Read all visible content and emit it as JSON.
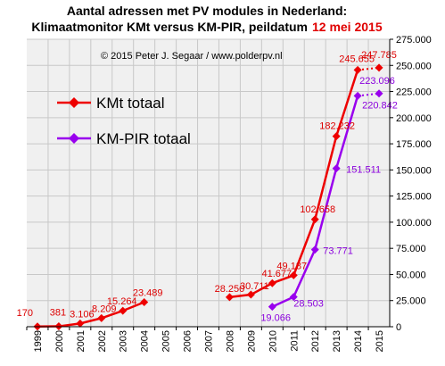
{
  "header": {
    "title_line1": "Aantal adressen met PV modules in Nederland:",
    "title_line2": "Klimaatmonitor  KMt versus KM-PIR,  peildatum",
    "title_date": "12 mei 2015",
    "credit": "© 2015 Peter J. Segaar / www.polderpv.nl"
  },
  "colors": {
    "kmt": "#ee0000",
    "kmpir": "#9900ee",
    "plot_bg": "#f0f0f0",
    "grid": "#c8c8c8"
  },
  "chart_data": {
    "type": "line",
    "title": "Aantal adressen met PV modules in Nederland: Klimaatmonitor  KMt versus KM-PIR,  peildatum 12 mei 2015",
    "x": [
      "1999",
      "2000",
      "2001",
      "2002",
      "2003",
      "2004",
      "2005",
      "2006",
      "2007",
      "2008",
      "2009",
      "2010",
      "2011",
      "2012",
      "2013",
      "2014",
      "2015"
    ],
    "ylim": [
      0,
      275000
    ],
    "yticks": [
      "0",
      "25.000",
      "50.000",
      "75.000",
      "100.000",
      "125.000",
      "150.000",
      "175.000",
      "200.000",
      "225.000",
      "250.000",
      "275.000"
    ],
    "y_axis_side": "right",
    "grid": true,
    "legend_position": "upper-left",
    "series": [
      {
        "name": "KMt totaal",
        "marker": "diamond",
        "segments": [
          {
            "style": "solid",
            "points": [
              {
                "x": "1999",
                "y": 170,
                "label": "170"
              },
              {
                "x": "2000",
                "y": 381,
                "label": "381"
              },
              {
                "x": "2001",
                "y": 3106,
                "label": "3.106"
              },
              {
                "x": "2002",
                "y": 8209,
                "label": "8.209"
              },
              {
                "x": "2003",
                "y": 15264,
                "label": "15.264"
              },
              {
                "x": "2004",
                "y": 23489,
                "label": "23.489"
              }
            ]
          },
          {
            "style": "solid",
            "points": [
              {
                "x": "2008",
                "y": 28250,
                "label": "28.250"
              },
              {
                "x": "2009",
                "y": 30711,
                "label": "30.711"
              },
              {
                "x": "2010",
                "y": 41677,
                "label": "41.677"
              },
              {
                "x": "2011",
                "y": 49187,
                "label": "49.187"
              },
              {
                "x": "2012",
                "y": 102658,
                "label": "102.658"
              },
              {
                "x": "2013",
                "y": 182232,
                "label": "182.232"
              },
              {
                "x": "2014",
                "y": 245655,
                "label": "245.655"
              }
            ]
          },
          {
            "style": "dotted",
            "points": [
              {
                "x": "2014",
                "y": 245655
              },
              {
                "x": "2015",
                "y": 247785,
                "label": "247.785"
              }
            ]
          }
        ]
      },
      {
        "name": "KM-PIR totaal",
        "marker": "diamond",
        "segments": [
          {
            "style": "solid",
            "points": [
              {
                "x": "2010",
                "y": 19066,
                "label": "19.066"
              },
              {
                "x": "2011",
                "y": 28503,
                "label": "28.503"
              },
              {
                "x": "2012",
                "y": 73771,
                "label": "73.771"
              },
              {
                "x": "2013",
                "y": 151511,
                "label": "151.511"
              },
              {
                "x": "2014",
                "y": 220842,
                "label": "220.842"
              }
            ]
          },
          {
            "style": "dotted",
            "points": [
              {
                "x": "2014",
                "y": 220842
              },
              {
                "x": "2015",
                "y": 223096,
                "label": "223.096"
              }
            ]
          }
        ]
      }
    ]
  }
}
